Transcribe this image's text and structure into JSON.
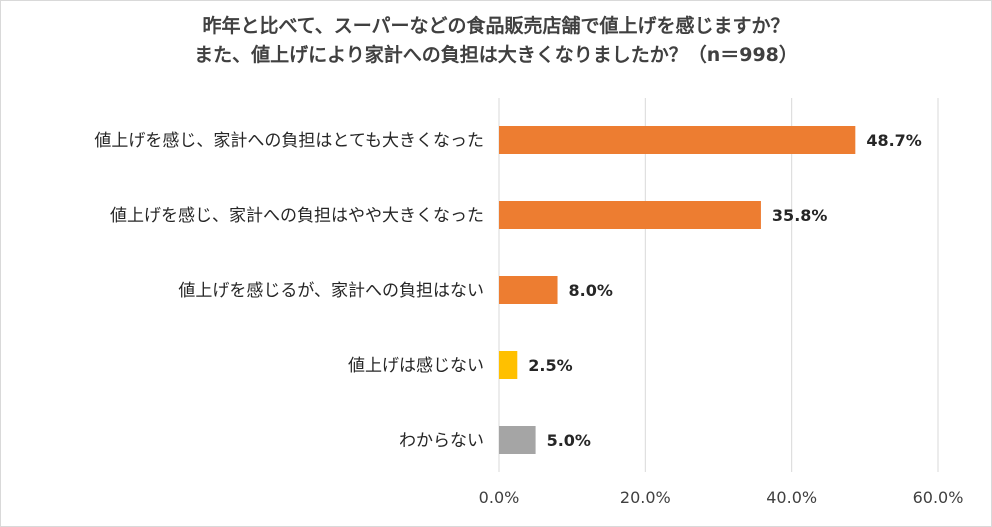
{
  "chart_data": {
    "type": "bar",
    "orientation": "horizontal",
    "title_lines": [
      "昨年と比べて、スーパーなどの食品販売店舗で値上げを感じますか？",
      "また、値上げにより家計への負担は大きくなりましたか？（n＝998）"
    ],
    "categories": [
      "値上げを感じ、家計への負担はとても大きくなった",
      "値上げを感じ、家計への負担はやや大きくなった",
      "値上げを感じるが、家計への負担はない",
      "値上げは感じない",
      "わからない"
    ],
    "values": [
      48.7,
      35.8,
      8.0,
      2.5,
      5.0
    ],
    "value_labels": [
      "48.7%",
      "35.8%",
      "8.0%",
      "2.5%",
      "5.0%"
    ],
    "bar_colors": [
      "#ed7d31",
      "#ed7d31",
      "#ed7d31",
      "#ffc000",
      "#a5a5a5"
    ],
    "xlim": [
      0,
      60
    ],
    "xticks": [
      0,
      20,
      40,
      60
    ],
    "xtick_labels": [
      "0.0%",
      "20.0%",
      "40.0%",
      "60.0%"
    ],
    "grid": true,
    "legend": "none"
  }
}
